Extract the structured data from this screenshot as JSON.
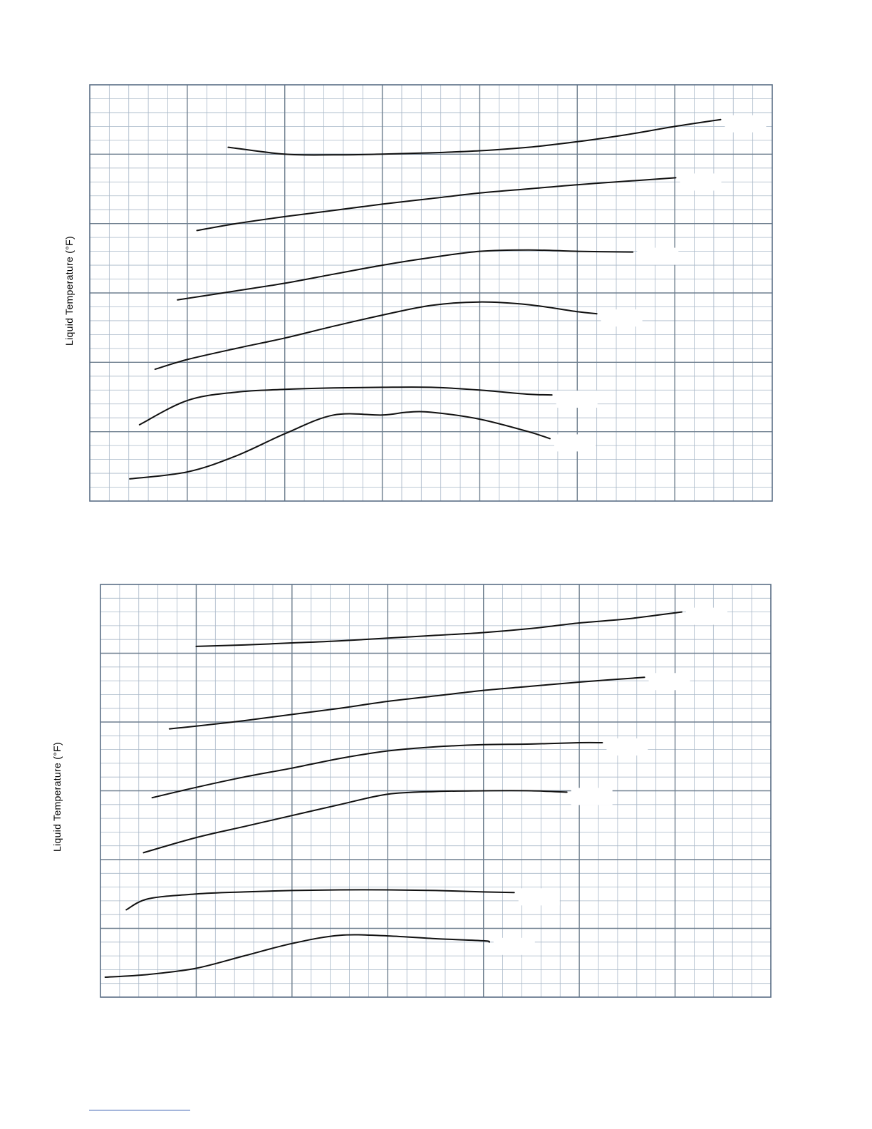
{
  "colors": {
    "minor_grid": "#a9b8c8",
    "major_grid": "#6f7f8f",
    "frame": "#5a6e85",
    "curve": "#111111",
    "label_box": "#ffffff",
    "footnote_rule": "#3a5fb0"
  },
  "chart_data": [
    {
      "type": "line",
      "xlim": [
        0,
        7
      ],
      "ylim": [
        0,
        6
      ],
      "ylabel": "Liquid Temperature (°F)",
      "grid": true,
      "series": [
        {
          "x": [
            1.42,
            2.0,
            2.5,
            3.0,
            3.5,
            4.0,
            4.5,
            5.0,
            5.5,
            6.0,
            6.47
          ],
          "y": [
            5.1,
            5.0,
            4.99,
            5.0,
            5.02,
            5.05,
            5.1,
            5.18,
            5.28,
            5.4,
            5.5
          ]
        },
        {
          "x": [
            1.1,
            1.5,
            2.0,
            2.5,
            3.0,
            3.5,
            4.0,
            4.5,
            5.0,
            5.5,
            6.01
          ],
          "y": [
            3.9,
            4.0,
            4.1,
            4.19,
            4.28,
            4.36,
            4.44,
            4.5,
            4.56,
            4.61,
            4.66
          ]
        },
        {
          "x": [
            0.9,
            1.5,
            2.0,
            2.5,
            3.0,
            3.5,
            4.0,
            4.5,
            5.0,
            5.57
          ],
          "y": [
            2.9,
            3.03,
            3.14,
            3.27,
            3.4,
            3.51,
            3.6,
            3.62,
            3.6,
            3.59
          ]
        },
        {
          "x": [
            0.67,
            1.0,
            1.5,
            2.0,
            2.5,
            3.0,
            3.5,
            4.0,
            4.5,
            5.0,
            5.2
          ],
          "y": [
            1.9,
            2.04,
            2.2,
            2.35,
            2.52,
            2.68,
            2.82,
            2.87,
            2.83,
            2.73,
            2.7
          ]
        },
        {
          "x": [
            0.51,
            1.0,
            1.5,
            2.0,
            2.5,
            3.0,
            3.5,
            4.0,
            4.5,
            4.74
          ],
          "y": [
            1.1,
            1.45,
            1.57,
            1.61,
            1.63,
            1.64,
            1.64,
            1.6,
            1.54,
            1.53
          ]
        },
        {
          "x": [
            0.41,
            1.0,
            1.5,
            2.0,
            2.5,
            3.0,
            3.25,
            3.5,
            4.0,
            4.5,
            4.72
          ],
          "y": [
            0.32,
            0.42,
            0.65,
            0.97,
            1.24,
            1.24,
            1.28,
            1.28,
            1.18,
            1.0,
            0.9
          ]
        }
      ]
    },
    {
      "type": "line",
      "xlim": [
        0,
        7
      ],
      "ylim": [
        0,
        6
      ],
      "ylabel": "Liquid Temperature (°F)",
      "grid": true,
      "series": [
        {
          "x": [
            1.0,
            1.5,
            2.0,
            2.5,
            3.0,
            3.5,
            4.0,
            4.5,
            5.0,
            5.5,
            6.07
          ],
          "y": [
            5.1,
            5.12,
            5.15,
            5.18,
            5.22,
            5.26,
            5.3,
            5.36,
            5.44,
            5.5,
            5.6
          ]
        },
        {
          "x": [
            0.72,
            1.0,
            1.5,
            2.0,
            2.5,
            3.0,
            3.5,
            4.0,
            4.5,
            5.0,
            5.68
          ],
          "y": [
            3.9,
            3.94,
            4.02,
            4.11,
            4.2,
            4.3,
            4.38,
            4.46,
            4.52,
            4.58,
            4.65
          ]
        },
        {
          "x": [
            0.54,
            1.0,
            1.5,
            2.0,
            2.5,
            3.0,
            3.5,
            4.0,
            4.5,
            5.0,
            5.24
          ],
          "y": [
            2.9,
            3.05,
            3.2,
            3.33,
            3.47,
            3.58,
            3.64,
            3.67,
            3.68,
            3.7,
            3.7
          ]
        },
        {
          "x": [
            0.45,
            1.0,
            1.5,
            2.0,
            2.5,
            3.0,
            3.5,
            4.0,
            4.5,
            4.87
          ],
          "y": [
            2.1,
            2.32,
            2.48,
            2.64,
            2.8,
            2.95,
            2.99,
            3.0,
            3.0,
            2.98
          ]
        },
        {
          "x": [
            0.27,
            0.5,
            1.0,
            1.5,
            2.0,
            2.5,
            3.0,
            3.5,
            4.0,
            4.32
          ],
          "y": [
            1.27,
            1.43,
            1.5,
            1.53,
            1.55,
            1.56,
            1.56,
            1.55,
            1.53,
            1.52
          ]
        },
        {
          "x": [
            0.05,
            0.5,
            1.0,
            1.5,
            2.0,
            2.5,
            3.0,
            3.5,
            4.0,
            4.06
          ],
          "y": [
            0.29,
            0.33,
            0.42,
            0.6,
            0.78,
            0.9,
            0.89,
            0.85,
            0.82,
            0.8
          ]
        }
      ]
    }
  ]
}
